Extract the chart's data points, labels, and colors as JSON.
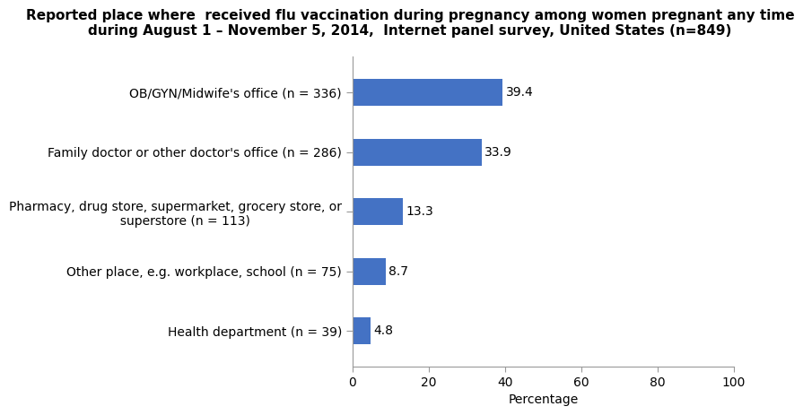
{
  "title_line1": "Reported place where  received flu vaccination during pregnancy among women pregnant any time",
  "title_line2": "during August 1 – November 5, 2014,  Internet panel survey, United States (n=849)",
  "categories": [
    "Health department (n = 39)",
    "Other place, e.g. workplace, school (n = 75)",
    "Pharmacy, drug store, supermarket, grocery store, or\n     superstore (n = 113)",
    "Family doctor or other doctor's office (n = 286)",
    "OB/GYN/Midwife's office (n = 336)"
  ],
  "values": [
    4.8,
    8.7,
    13.3,
    33.9,
    39.4
  ],
  "bar_color": "#4472C4",
  "xlabel": "Percentage",
  "xlim": [
    0,
    100
  ],
  "xticks": [
    0,
    20,
    40,
    60,
    80,
    100
  ],
  "background_color": "#ffffff",
  "title_fontsize": 11,
  "label_fontsize": 10,
  "value_fontsize": 10,
  "bar_height": 0.45
}
